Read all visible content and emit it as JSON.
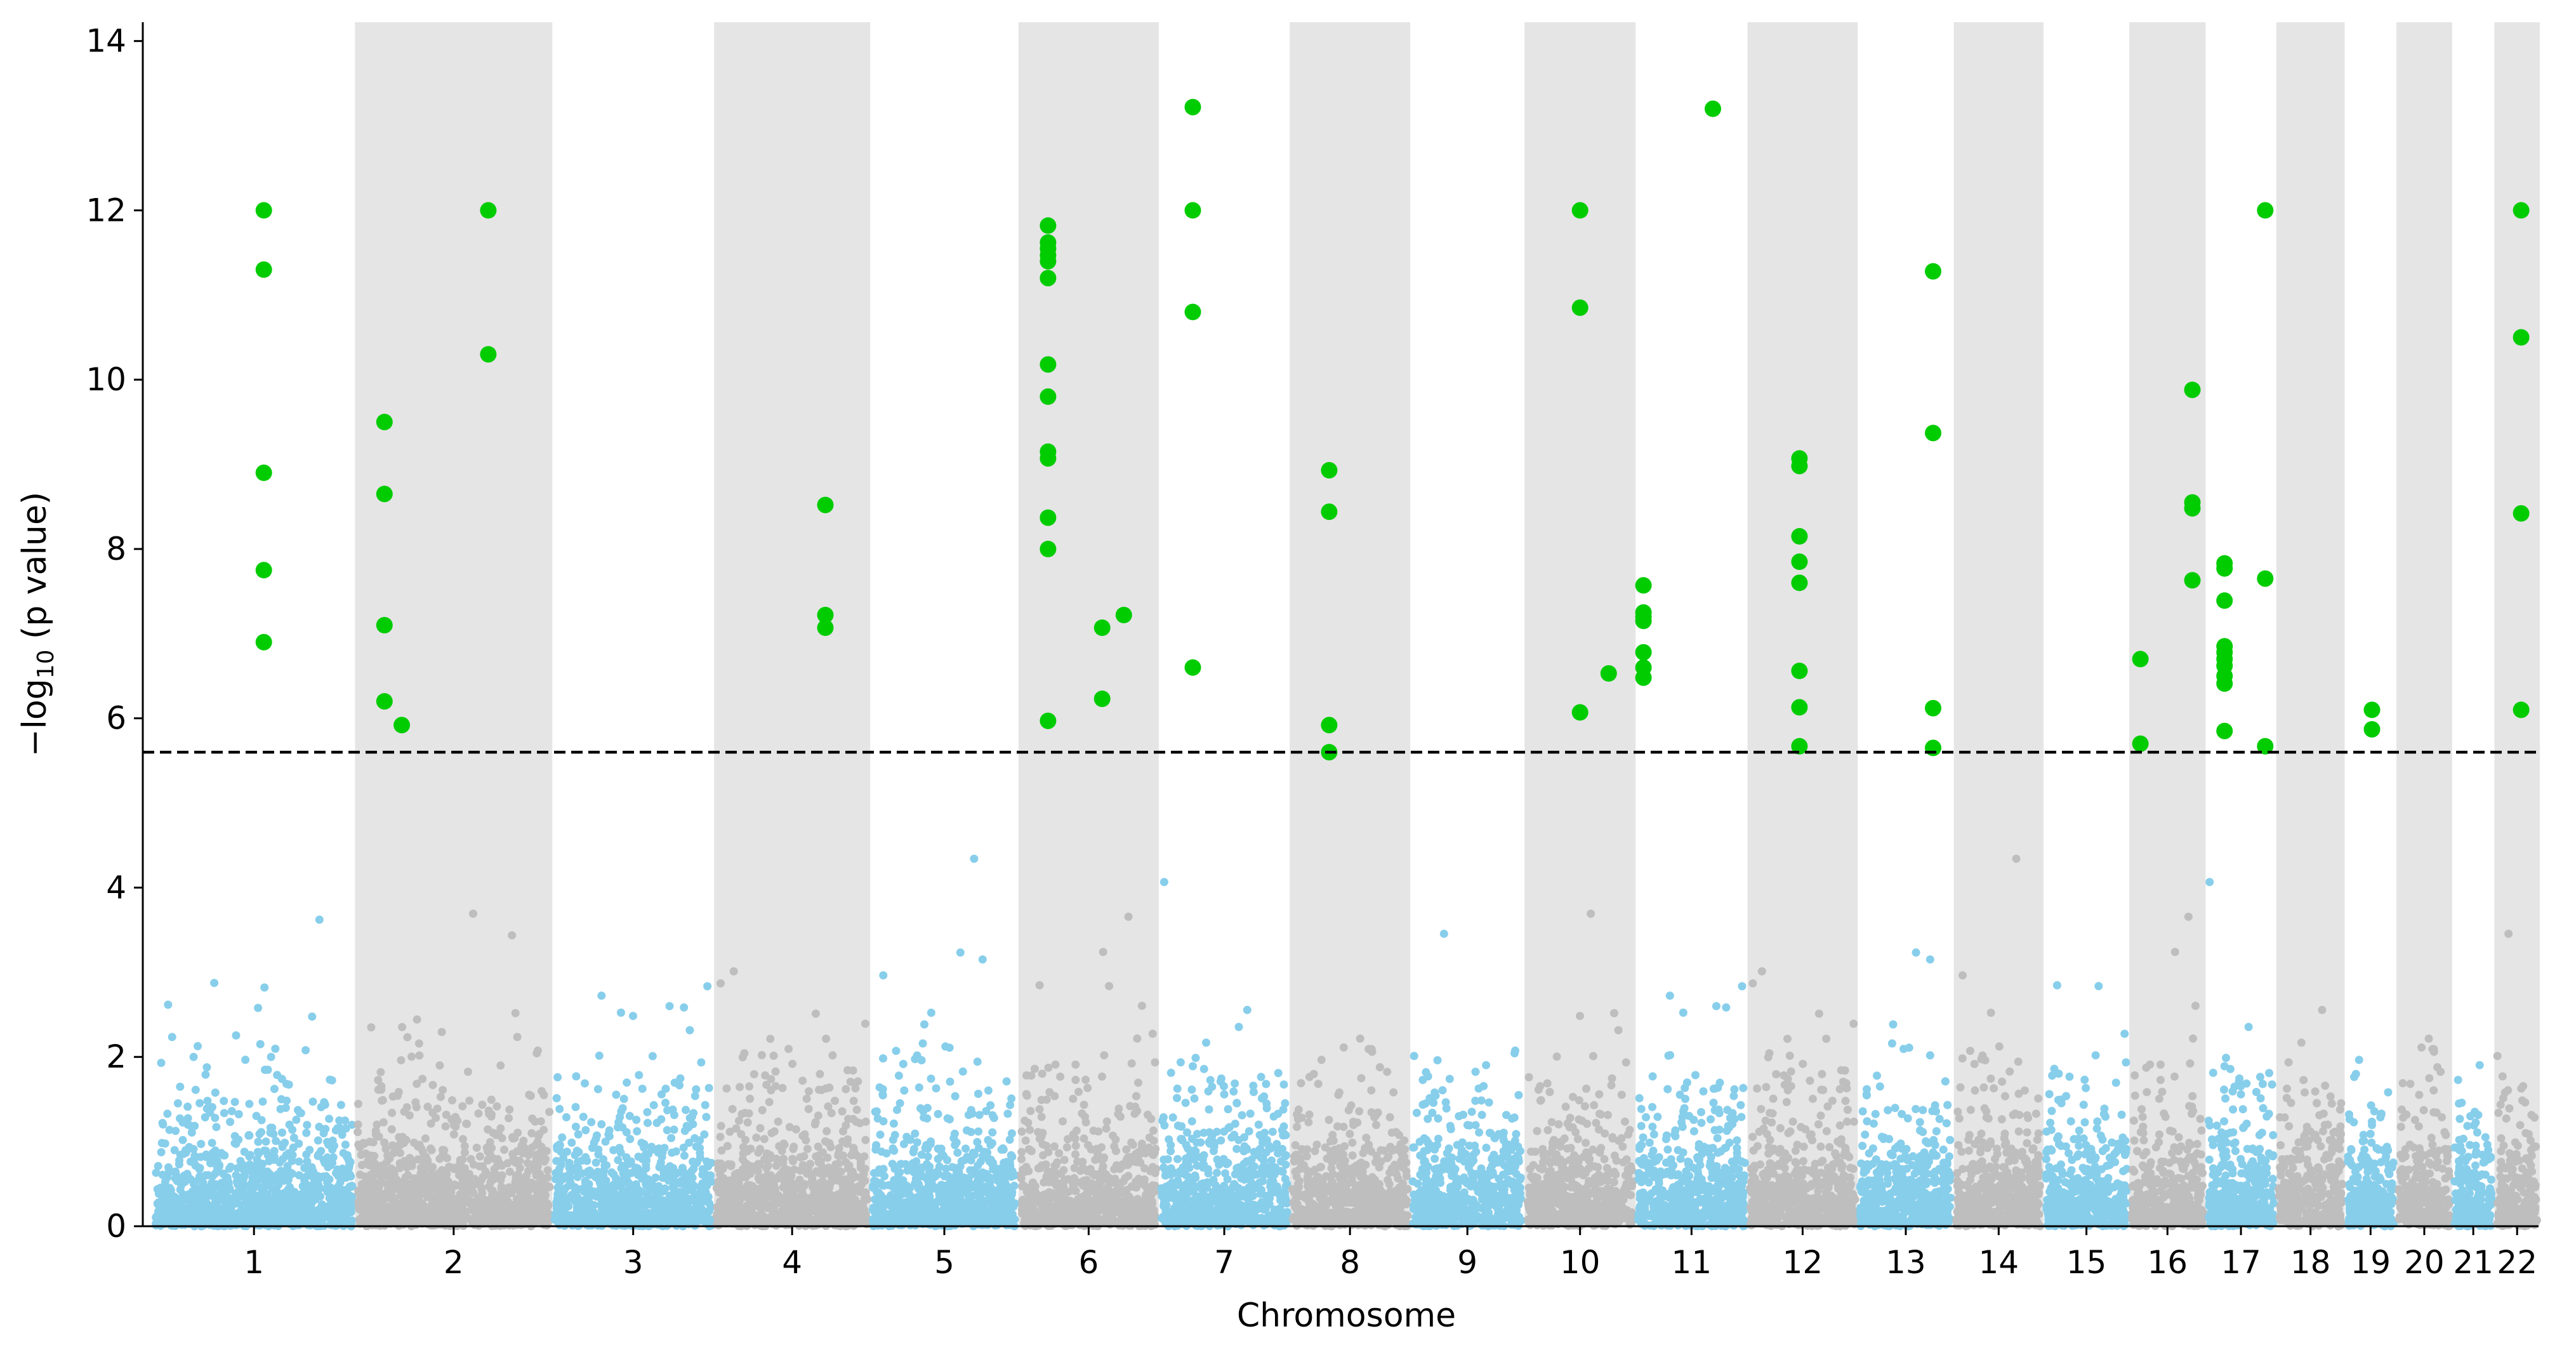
{
  "chart_data": {
    "type": "scatter",
    "subtype": "manhattan",
    "title": "",
    "xlabel": "Chromosome",
    "ylabel_parts": [
      "−log",
      "10",
      " (p value)"
    ],
    "ylim": [
      0,
      14.2
    ],
    "yticks": [
      0,
      2,
      4,
      6,
      8,
      10,
      12,
      14
    ],
    "significance_threshold": 5.6,
    "colors": {
      "odd_chromosome": "#87CEEB",
      "even_chromosome": "#BEBEBE",
      "significant": "#00CC00",
      "band": "#E5E5E5",
      "threshold": "#000000"
    },
    "chromosomes": [
      "1",
      "2",
      "3",
      "4",
      "5",
      "6",
      "7",
      "8",
      "9",
      "10",
      "11",
      "12",
      "13",
      "14",
      "15",
      "16",
      "17",
      "18",
      "19",
      "20",
      "21",
      "22"
    ],
    "chromosome_lengths_mb": [
      249,
      243,
      198,
      191,
      181,
      171,
      159,
      146,
      138,
      134,
      135,
      133,
      115,
      107,
      102,
      90,
      83,
      80,
      59,
      64,
      47,
      51
    ],
    "significant_points": [
      {
        "chr": "1",
        "pos": 0.55,
        "values": [
          12.0,
          11.3,
          8.9,
          7.75,
          6.9
        ]
      },
      {
        "chr": "2",
        "pos": 0.14,
        "values": [
          9.5,
          8.65,
          7.1,
          6.2
        ]
      },
      {
        "chr": "2",
        "pos": 0.23,
        "values": [
          5.92
        ]
      },
      {
        "chr": "2",
        "pos": 0.68,
        "values": [
          12.0,
          10.3
        ]
      },
      {
        "chr": "4",
        "pos": 0.72,
        "values": [
          8.52,
          7.22,
          7.07
        ]
      },
      {
        "chr": "6",
        "pos": 0.2,
        "values": [
          11.82,
          11.62,
          11.55,
          11.47,
          11.4,
          11.2,
          10.18,
          9.8,
          9.15,
          9.07,
          8.37,
          8.0,
          5.97
        ]
      },
      {
        "chr": "6",
        "pos": 0.6,
        "values": [
          7.07,
          6.23
        ]
      },
      {
        "chr": "6",
        "pos": 0.76,
        "values": [
          7.22
        ]
      },
      {
        "chr": "7",
        "pos": 0.25,
        "values": [
          13.22,
          12.0,
          10.8,
          6.6
        ]
      },
      {
        "chr": "8",
        "pos": 0.32,
        "values": [
          8.93,
          8.44,
          5.92,
          5.6
        ]
      },
      {
        "chr": "10",
        "pos": 0.5,
        "values": [
          12.0,
          10.85,
          6.07
        ]
      },
      {
        "chr": "10",
        "pos": 0.77,
        "values": [
          6.53
        ]
      },
      {
        "chr": "11",
        "pos": 0.05,
        "values": [
          7.57,
          7.25,
          7.2,
          7.15,
          6.78,
          6.6,
          6.48
        ]
      },
      {
        "chr": "11",
        "pos": 0.7,
        "values": [
          13.2
        ]
      },
      {
        "chr": "12",
        "pos": 0.47,
        "values": [
          9.07,
          8.98,
          8.15,
          7.85,
          7.6,
          6.56,
          6.13,
          5.67
        ]
      },
      {
        "chr": "13",
        "pos": 0.8,
        "values": [
          11.28,
          9.37,
          6.12,
          5.65
        ]
      },
      {
        "chr": "16",
        "pos": 0.12,
        "values": [
          6.7,
          5.7
        ]
      },
      {
        "chr": "16",
        "pos": 0.85,
        "values": [
          9.88,
          8.55,
          8.48,
          7.63
        ]
      },
      {
        "chr": "17",
        "pos": 0.25,
        "values": [
          7.83,
          7.77,
          7.39,
          6.85,
          6.78,
          6.7,
          6.62,
          6.5,
          6.41,
          5.85
        ]
      },
      {
        "chr": "17",
        "pos": 0.87,
        "values": [
          12.0,
          7.65,
          5.67
        ]
      },
      {
        "chr": "19",
        "pos": 0.53,
        "values": [
          6.1,
          5.87
        ]
      },
      {
        "chr": "22",
        "pos": 0.6,
        "values": [
          12.0,
          10.5,
          8.42,
          6.1
        ]
      }
    ]
  }
}
